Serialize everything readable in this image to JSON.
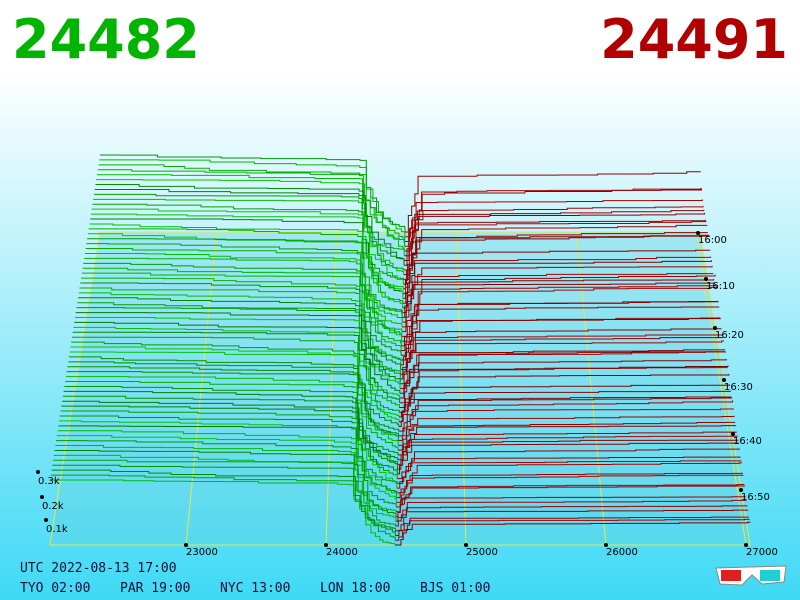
{
  "bid_price": "24482",
  "ask_price": "24491",
  "x_axis_labels": [
    "23000",
    "24000",
    "25000",
    "26000",
    "27000"
  ],
  "time_labels": [
    "16:00",
    "16:10",
    "16:20",
    "16:30",
    "16:40",
    "16:50"
  ],
  "depth_labels": [
    "0.3k",
    "0.2k",
    "0.1k"
  ],
  "utc": "UTC 2022-08-13 17:00",
  "clocks": [
    "TYO 02:00",
    "PAR 19:00",
    "NYC 13:00",
    "LON 18:00",
    "BJS 01:00"
  ]
}
